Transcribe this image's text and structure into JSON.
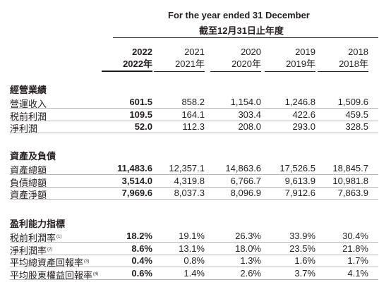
{
  "header": {
    "title_en": "For the year ended 31 December",
    "title_zh": "截至12月31日止年度"
  },
  "years": [
    {
      "en": "2022",
      "zh": "2022年",
      "bold": true
    },
    {
      "en": "2021",
      "zh": "2021年",
      "bold": false
    },
    {
      "en": "2020",
      "zh": "2020年",
      "bold": false
    },
    {
      "en": "2019",
      "zh": "2019年",
      "bold": false
    },
    {
      "en": "2018",
      "zh": "2018年",
      "bold": false
    }
  ],
  "sections": [
    {
      "title": "經營業績",
      "rows": [
        {
          "label": "營運收入",
          "note": "",
          "values": [
            "601.5",
            "858.2",
            "1,154.0",
            "1,246.8",
            "1,509.6"
          ]
        },
        {
          "label": "税前利潤",
          "note": "",
          "values": [
            "109.5",
            "164.1",
            "303.4",
            "422.6",
            "459.5"
          ]
        },
        {
          "label": "淨利潤",
          "note": "",
          "values": [
            "52.0",
            "112.3",
            "208.0",
            "293.0",
            "328.5"
          ]
        }
      ]
    },
    {
      "title": "資產及負債",
      "rows": [
        {
          "label": "資產總額",
          "note": "",
          "values": [
            "11,483.6",
            "12,357.1",
            "14,863.6",
            "17,526.5",
            "18,845.7"
          ]
        },
        {
          "label": "負債總額",
          "note": "",
          "values": [
            "3,514.0",
            "4,319.8",
            "6,766.7",
            "9,613.9",
            "10,981.8"
          ]
        },
        {
          "label": "資產淨額",
          "note": "",
          "values": [
            "7,969.6",
            "8,037.3",
            "8,096.9",
            "7,912.6",
            "7,863.9"
          ]
        }
      ]
    },
    {
      "title": "盈利能力指標",
      "rows": [
        {
          "label": "税前利潤率",
          "note": "(1)",
          "values": [
            "18.2%",
            "19.1%",
            "26.3%",
            "33.9%",
            "30.4%"
          ]
        },
        {
          "label": "淨利潤率",
          "note": "(2)",
          "values": [
            "8.6%",
            "13.1%",
            "18.0%",
            "23.5%",
            "21.8%"
          ]
        },
        {
          "label": "平均總資產回報率",
          "note": "(3)",
          "values": [
            "0.4%",
            "0.8%",
            "1.3%",
            "1.6%",
            "1.7%"
          ]
        },
        {
          "label": "平均股東權益回報率",
          "note": "(4)",
          "values": [
            "0.6%",
            "1.4%",
            "2.6%",
            "3.7%",
            "4.1%"
          ]
        }
      ]
    }
  ]
}
